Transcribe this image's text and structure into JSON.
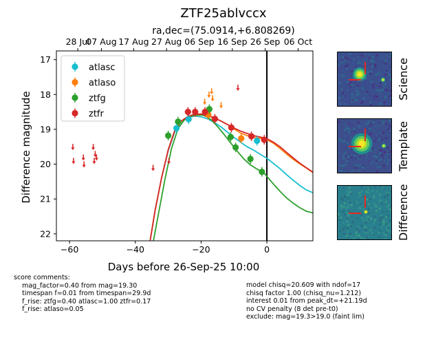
{
  "chart_data": {
    "type": "scatter",
    "title": "ZTF25ablvccx",
    "subtitle": "ra,dec=(75.0914,+6.808269)",
    "xlabel": "Days before 26-Sep-25 10:00",
    "ylabel": "Difference magnitude",
    "xlim": [
      -64,
      14
    ],
    "ylim": [
      22.2,
      16.75
    ],
    "x_ticks": [
      -60,
      -40,
      -20,
      0
    ],
    "y_ticks": [
      17,
      18,
      19,
      20,
      21,
      22
    ],
    "top_ticks": [
      {
        "x": -57.5,
        "label": "28 Jul"
      },
      {
        "x": -50.3,
        "label": "07 Aug"
      },
      {
        "x": -40.5,
        "label": "17 Aug"
      },
      {
        "x": -30.5,
        "label": "27 Aug"
      },
      {
        "x": -20.5,
        "label": "06 Sep"
      },
      {
        "x": -10.5,
        "label": "16 Sep"
      },
      {
        "x": -0.5,
        "label": "26 Sep"
      },
      {
        "x": 9.5,
        "label": "06 Oct"
      }
    ],
    "vline_x": 0,
    "legend_position": "upper-left",
    "series": [
      {
        "name": "atlasc",
        "color": "#17becf",
        "points": [
          [
            -27.5,
            18.97
          ],
          [
            -23.8,
            18.71
          ],
          [
            -3,
            19.33
          ]
        ],
        "curve": [
          [
            -35.5,
            22.2
          ],
          [
            -34,
            21.33
          ],
          [
            -32,
            20.39
          ],
          [
            -30,
            19.62
          ],
          [
            -28,
            19.07
          ],
          [
            -26,
            18.78
          ],
          [
            -24,
            18.66
          ],
          [
            -22,
            18.62
          ],
          [
            -20,
            18.64
          ],
          [
            -18,
            18.7
          ],
          [
            -16,
            18.8
          ],
          [
            -14,
            18.93
          ],
          [
            -12,
            19.08
          ],
          [
            -10,
            19.23
          ],
          [
            -8,
            19.37
          ],
          [
            -6,
            19.5
          ],
          [
            -4,
            19.6
          ],
          [
            -2,
            19.72
          ],
          [
            0,
            19.83
          ],
          [
            2,
            19.98
          ],
          [
            4,
            20.13
          ],
          [
            6,
            20.3
          ],
          [
            8,
            20.46
          ],
          [
            10,
            20.61
          ],
          [
            12,
            20.74
          ],
          [
            14,
            20.82
          ]
        ]
      },
      {
        "name": "atlaso",
        "color": "#ff7f0e",
        "points": [
          [
            -17.8,
            18.58
          ],
          [
            -7.8,
            19.26
          ]
        ],
        "upper_limits": [
          [
            -18.9,
            18.2
          ],
          [
            -17.6,
            18.0
          ],
          [
            -16.8,
            17.9
          ],
          [
            -16.5,
            18.1
          ],
          [
            -13.9,
            18.3
          ]
        ],
        "curve": [
          [
            -35.5,
            22.2
          ],
          [
            -34,
            21.33
          ],
          [
            -32,
            20.39
          ],
          [
            -30,
            19.59
          ],
          [
            -28,
            19.03
          ],
          [
            -26,
            18.77
          ],
          [
            -24,
            18.65
          ],
          [
            -22,
            18.6
          ],
          [
            -20,
            18.59
          ],
          [
            -18,
            18.62
          ],
          [
            -16,
            18.68
          ],
          [
            -14,
            18.76
          ],
          [
            -12,
            18.86
          ],
          [
            -10,
            18.99
          ],
          [
            -8,
            19.11
          ],
          [
            -6,
            19.18
          ],
          [
            -4,
            19.23
          ],
          [
            -2,
            19.26
          ],
          [
            0,
            19.3
          ],
          [
            2,
            19.4
          ],
          [
            4,
            19.55
          ],
          [
            6,
            19.71
          ],
          [
            8,
            19.86
          ],
          [
            10,
            19.99
          ],
          [
            12,
            20.11
          ],
          [
            14,
            20.24
          ]
        ]
      },
      {
        "name": "ztfg",
        "color": "#2ca02c",
        "points": [
          [
            -30,
            19.18
          ],
          [
            -27,
            18.78
          ],
          [
            -17.5,
            18.42
          ],
          [
            -11,
            19.22
          ],
          [
            -9.5,
            19.52
          ],
          [
            -5,
            19.85
          ],
          [
            -1.5,
            20.22
          ]
        ],
        "curve": [
          [
            -34.5,
            22.2
          ],
          [
            -33,
            21.45
          ],
          [
            -31,
            20.44
          ],
          [
            -29,
            19.55
          ],
          [
            -27,
            18.98
          ],
          [
            -25,
            18.72
          ],
          [
            -23,
            18.62
          ],
          [
            -21,
            18.58
          ],
          [
            -19,
            18.6
          ],
          [
            -17,
            18.72
          ],
          [
            -15,
            18.92
          ],
          [
            -13,
            19.15
          ],
          [
            -11,
            19.39
          ],
          [
            -9,
            19.63
          ],
          [
            -7,
            19.85
          ],
          [
            -5,
            20.02
          ],
          [
            -3,
            20.14
          ],
          [
            -1,
            20.24
          ],
          [
            0,
            20.35
          ],
          [
            2,
            20.57
          ],
          [
            4,
            20.78
          ],
          [
            6,
            20.97
          ],
          [
            8,
            21.12
          ],
          [
            10,
            21.25
          ],
          [
            12,
            21.35
          ],
          [
            14,
            21.4
          ]
        ]
      },
      {
        "name": "ztfr",
        "color": "#d62728",
        "points": [
          [
            -24,
            18.5
          ],
          [
            -21.8,
            18.5
          ],
          [
            -18.8,
            18.5
          ],
          [
            -15.8,
            18.7
          ],
          [
            -10.8,
            18.95
          ],
          [
            -4.7,
            19.2
          ],
          [
            -0.8,
            19.3
          ]
        ],
        "upper_limits": [
          [
            -59,
            19.5
          ],
          [
            -58.8,
            19.9
          ],
          [
            -55.8,
            19.8
          ],
          [
            -55.6,
            20.0
          ],
          [
            -52.8,
            19.5
          ],
          [
            -52.5,
            19.9
          ],
          [
            -52.2,
            19.7
          ],
          [
            -51.8,
            19.8
          ],
          [
            -34.6,
            20.1
          ],
          [
            -29.8,
            19.9
          ],
          [
            -8.8,
            17.8
          ]
        ],
        "curve": [
          [
            -35.5,
            22.2
          ],
          [
            -34,
            21.33
          ],
          [
            -32,
            20.39
          ],
          [
            -30,
            19.59
          ],
          [
            -28,
            19.03
          ],
          [
            -26,
            18.76
          ],
          [
            -24,
            18.63
          ],
          [
            -22,
            18.57
          ],
          [
            -20,
            18.56
          ],
          [
            -18,
            18.6
          ],
          [
            -16,
            18.67
          ],
          [
            -14,
            18.76
          ],
          [
            -12,
            18.86
          ],
          [
            -10,
            18.96
          ],
          [
            -8,
            19.05
          ],
          [
            -6,
            19.12
          ],
          [
            -4,
            19.18
          ],
          [
            -2,
            19.22
          ],
          [
            0,
            19.27
          ],
          [
            2,
            19.37
          ],
          [
            4,
            19.5
          ],
          [
            6,
            19.66
          ],
          [
            8,
            19.82
          ],
          [
            10,
            19.97
          ],
          [
            12,
            20.1
          ],
          [
            14,
            20.23
          ]
        ]
      }
    ]
  },
  "stamps": [
    {
      "label": "Science",
      "background": "#3b4f8f"
    },
    {
      "label": "Template",
      "background": "#3d4e8d"
    },
    {
      "label": "Difference",
      "background": "#2a7f8e"
    }
  ],
  "comments_left": "score comments:\n    mag_factor=0.40 from mag=19.30\n    timespan f=0.01 from timespan=29.9d\n    f_rise: ztfg=0.40 atlasc=1.00 ztfr=0.17\n    f_rise: atlaso=0.05",
  "comments_right": "model chisq=20.609 with ndof=17\nchisq factor 1.00 (chisq_nu=1.212)\ninterest 0.01 from peak_dt=+21.19d\nno CV penalty (8 det pre-t0)\nexclude: mag=19.3>19.0 (faint lim)"
}
